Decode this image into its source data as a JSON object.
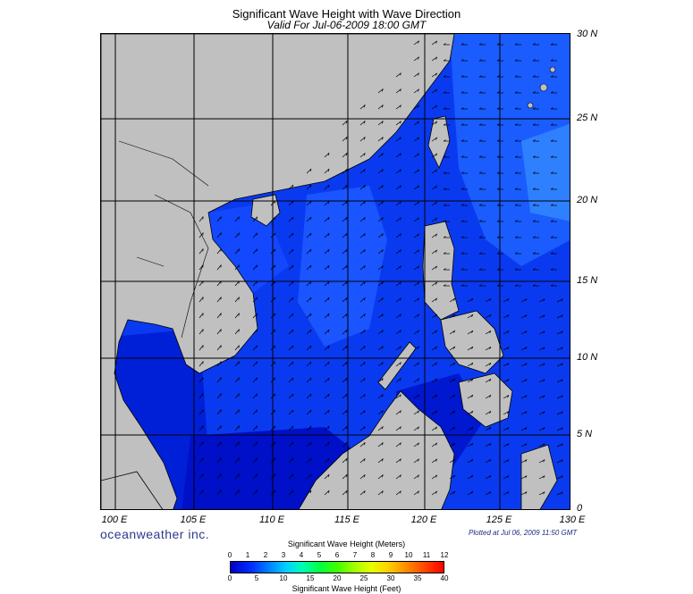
{
  "title": "Significant Wave Height with Wave Direction",
  "subtitle": "Valid For Jul-06-2009 18:00 GMT",
  "lon_ticks": [
    "100 E",
    "105 E",
    "110 E",
    "115 E",
    "120 E",
    "125 E",
    "130 E"
  ],
  "lat_ticks": [
    "30 N",
    "25 N",
    "20 N",
    "15 N",
    "10 N",
    "5 N",
    "0"
  ],
  "brand": "oceanweather inc.",
  "plotted": "Plotted at Jul 06, 2009 11:50 GMT",
  "legend": {
    "title_meters": "Significant Wave Height (Meters)",
    "title_feet": "Significant Wave Height (Feet)",
    "meters": [
      "0",
      "1",
      "2",
      "3",
      "4",
      "5",
      "6",
      "7",
      "8",
      "9",
      "10",
      "11",
      "12"
    ],
    "feet": [
      "0",
      "5",
      "10",
      "15",
      "20",
      "25",
      "30",
      "35",
      "40"
    ]
  },
  "colors": {
    "land": "#c0c0c0",
    "sea_dark": "#0000c8",
    "sea_mid": "#0a3cf0",
    "sea_light": "#2a78ff"
  }
}
